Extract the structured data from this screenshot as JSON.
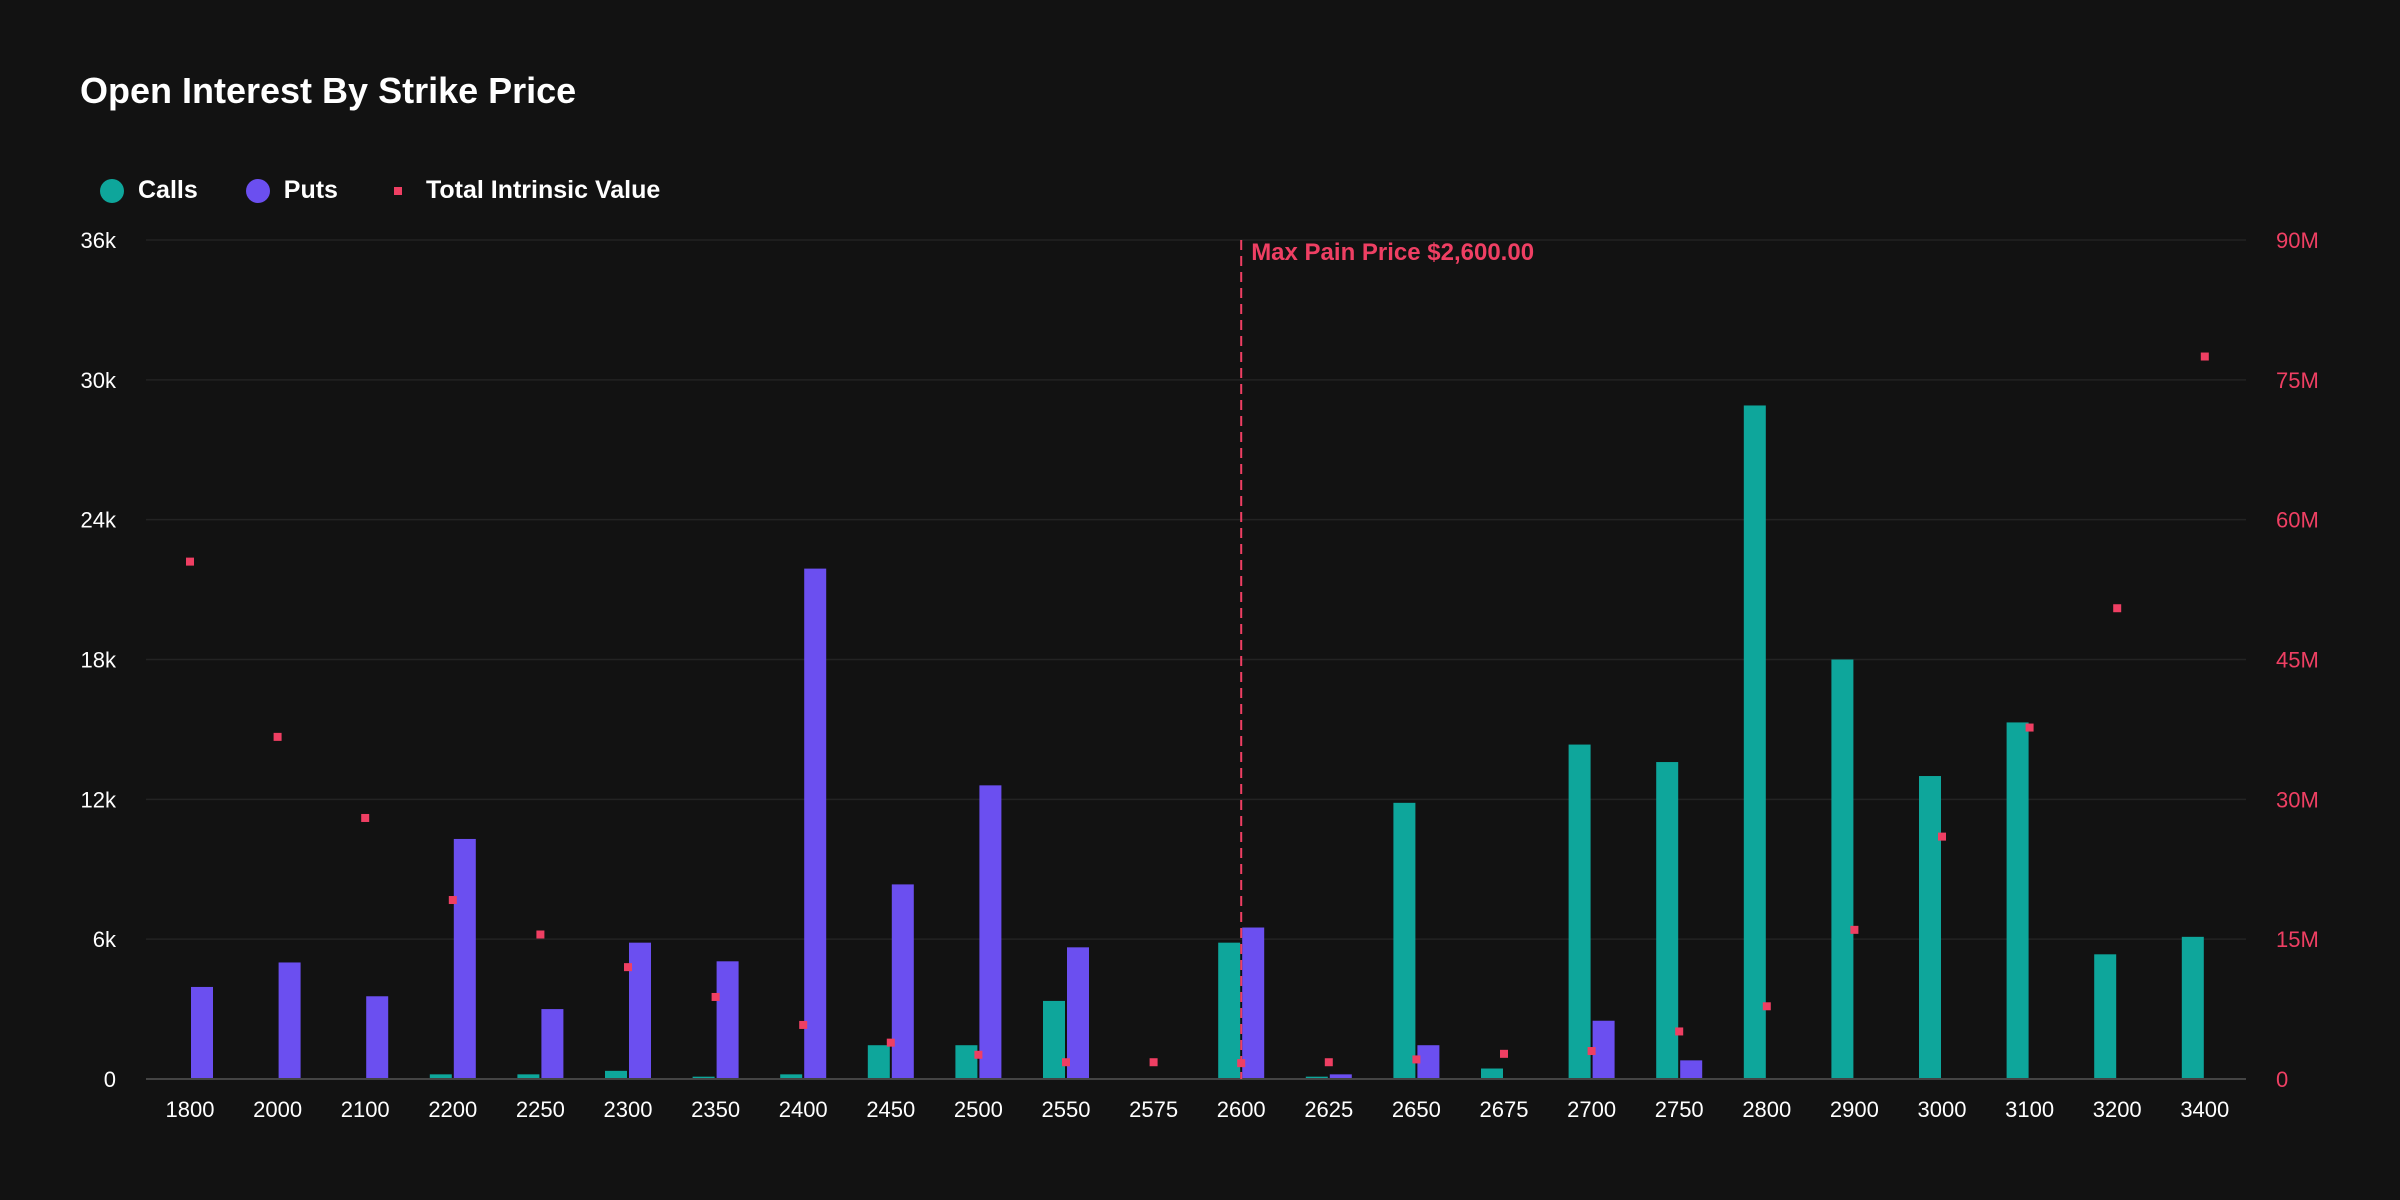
{
  "title": "Open Interest By Strike Price",
  "legend": {
    "calls": "Calls",
    "puts": "Puts",
    "tiv": "Total Intrinsic Value"
  },
  "colors": {
    "calls": "#0ea69b",
    "puts": "#6b4ff0",
    "tiv": "#ef3f63",
    "background": "#121212",
    "grid": "#232323"
  },
  "max_pain_label": "Max Pain Price $2,600.00",
  "chart_data": {
    "type": "bar",
    "title": "Open Interest By Strike Price",
    "categories": [
      "1800",
      "2000",
      "2100",
      "2200",
      "2250",
      "2300",
      "2350",
      "2400",
      "2450",
      "2500",
      "2550",
      "2575",
      "2600",
      "2625",
      "2650",
      "2675",
      "2700",
      "2750",
      "2800",
      "2900",
      "3000",
      "3100",
      "3200",
      "3400"
    ],
    "series": [
      {
        "name": "Calls",
        "axis": "left",
        "values": [
          0,
          0,
          0,
          200,
          200,
          350,
          100,
          200,
          1450,
          1450,
          3350,
          0,
          5850,
          100,
          11850,
          450,
          14350,
          13600,
          28900,
          18000,
          13000,
          15300,
          5350,
          6100
        ]
      },
      {
        "name": "Puts",
        "axis": "left",
        "values": [
          3950,
          5000,
          3550,
          10300,
          3000,
          5850,
          5050,
          21900,
          8350,
          12600,
          5650,
          0,
          6500,
          200,
          1450,
          0,
          2500,
          800,
          0,
          0,
          0,
          0,
          0,
          0
        ]
      },
      {
        "name": "Total Intrinsic Value",
        "axis": "right",
        "type": "scatter",
        "values": [
          55500000,
          36700000,
          28000000,
          19200000,
          15500000,
          12000000,
          8800000,
          5800000,
          3900000,
          2600000,
          1800000,
          1800000,
          1700000,
          1800000,
          2100000,
          2700000,
          3000000,
          5100000,
          7800000,
          16000000,
          26000000,
          37700000,
          50500000,
          77500000
        ]
      }
    ],
    "y_left": {
      "ylim": [
        0,
        36000
      ],
      "ticks": [
        "0",
        "6k",
        "12k",
        "18k",
        "24k",
        "30k",
        "36k"
      ],
      "values": [
        0,
        6000,
        12000,
        18000,
        24000,
        30000,
        36000
      ]
    },
    "y_right": {
      "ylim": [
        0,
        90000000
      ],
      "ticks": [
        "0",
        "15M",
        "30M",
        "45M",
        "60M",
        "75M",
        "90M"
      ],
      "values": [
        0,
        15000000,
        30000000,
        45000000,
        60000000,
        75000000,
        90000000
      ]
    },
    "max_pain": {
      "category": "2600",
      "label": "Max Pain Price $2,600.00"
    },
    "grid": true,
    "legend_position": "top-left"
  }
}
